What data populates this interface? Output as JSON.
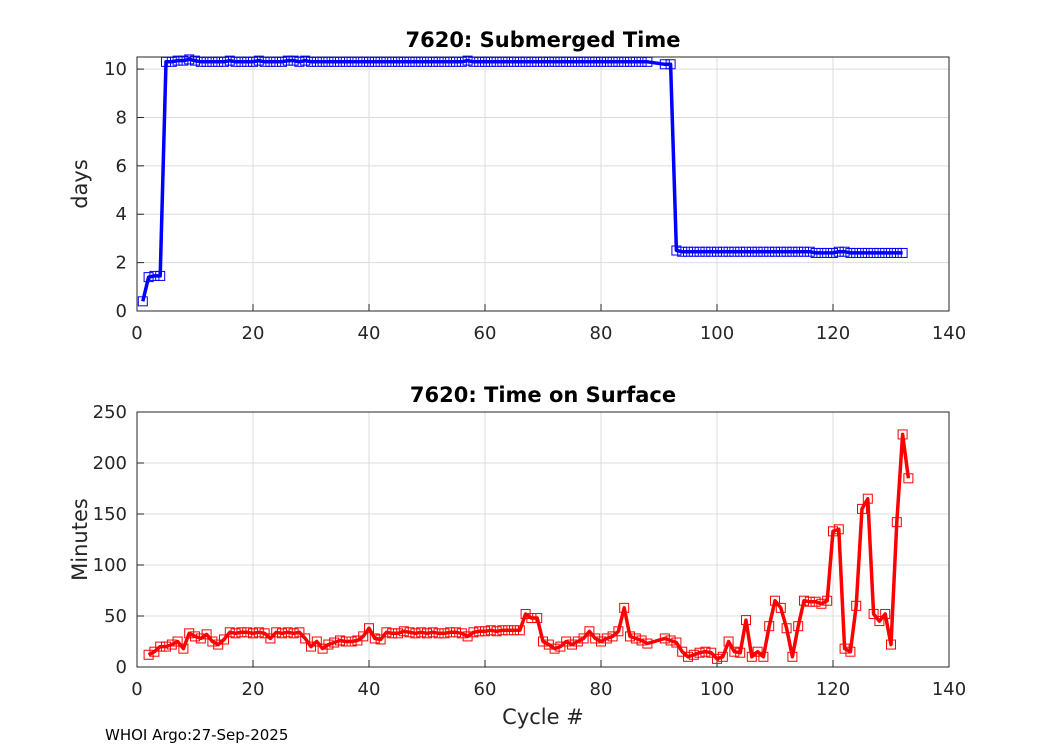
{
  "footer": "WHOI Argo:27-Sep-2025",
  "colors": {
    "series1": "#0000ff",
    "series2": "#ff0000",
    "grid": "#dcdcdc",
    "axis": "#262626"
  },
  "chart_data": [
    {
      "type": "line",
      "title": "7620: Submerged Time",
      "xlabel": "",
      "ylabel": "days",
      "xlim": [
        0,
        140
      ],
      "ylim": [
        0,
        10.5
      ],
      "xticks": [
        "0",
        "20",
        "40",
        "60",
        "80",
        "100",
        "120",
        "140"
      ],
      "yticks": [
        "0",
        "2",
        "4",
        "6",
        "8",
        "10"
      ],
      "grid": true,
      "marker": "square",
      "series": [
        {
          "name": "Submerged Time",
          "x": [
            1,
            2,
            3,
            4,
            5,
            6,
            7,
            8,
            9,
            10,
            11,
            12,
            13,
            14,
            15,
            16,
            17,
            18,
            19,
            20,
            21,
            22,
            23,
            24,
            25,
            26,
            27,
            28,
            29,
            30,
            31,
            32,
            33,
            34,
            35,
            36,
            37,
            38,
            39,
            40,
            41,
            42,
            43,
            44,
            45,
            46,
            47,
            48,
            49,
            50,
            51,
            52,
            53,
            54,
            55,
            56,
            57,
            58,
            59,
            60,
            61,
            62,
            63,
            64,
            65,
            66,
            67,
            68,
            69,
            70,
            71,
            72,
            73,
            74,
            75,
            76,
            77,
            78,
            79,
            80,
            81,
            82,
            83,
            84,
            85,
            86,
            87,
            88,
            91,
            92,
            93,
            94,
            95,
            96,
            97,
            98,
            99,
            100,
            101,
            102,
            103,
            104,
            105,
            106,
            107,
            108,
            109,
            110,
            111,
            112,
            113,
            114,
            115,
            116,
            117,
            118,
            119,
            120,
            121,
            122,
            123,
            124,
            125,
            126,
            127,
            128,
            129,
            130,
            131,
            132
          ],
          "values": [
            0.4,
            1.4,
            1.45,
            1.45,
            10.3,
            10.3,
            10.35,
            10.35,
            10.4,
            10.35,
            10.3,
            10.3,
            10.3,
            10.3,
            10.3,
            10.35,
            10.3,
            10.3,
            10.3,
            10.3,
            10.35,
            10.3,
            10.3,
            10.3,
            10.3,
            10.35,
            10.35,
            10.3,
            10.35,
            10.3,
            10.3,
            10.3,
            10.3,
            10.3,
            10.3,
            10.3,
            10.3,
            10.3,
            10.3,
            10.3,
            10.3,
            10.3,
            10.3,
            10.3,
            10.3,
            10.3,
            10.3,
            10.3,
            10.3,
            10.3,
            10.3,
            10.3,
            10.3,
            10.3,
            10.3,
            10.3,
            10.35,
            10.3,
            10.3,
            10.3,
            10.3,
            10.3,
            10.3,
            10.3,
            10.3,
            10.3,
            10.3,
            10.3,
            10.3,
            10.3,
            10.3,
            10.3,
            10.3,
            10.3,
            10.3,
            10.3,
            10.3,
            10.3,
            10.3,
            10.3,
            10.3,
            10.3,
            10.3,
            10.3,
            10.3,
            10.3,
            10.3,
            10.3,
            10.2,
            10.2,
            2.5,
            2.45,
            2.45,
            2.45,
            2.45,
            2.45,
            2.45,
            2.45,
            2.45,
            2.45,
            2.45,
            2.45,
            2.45,
            2.45,
            2.45,
            2.45,
            2.45,
            2.45,
            2.45,
            2.45,
            2.45,
            2.45,
            2.45,
            2.45,
            2.4,
            2.4,
            2.4,
            2.4,
            2.45,
            2.45,
            2.4,
            2.4,
            2.4,
            2.4,
            2.4,
            2.4,
            2.4,
            2.4,
            2.4,
            2.4
          ]
        }
      ]
    },
    {
      "type": "line",
      "title": "7620: Time on Surface",
      "xlabel": "Cycle #",
      "ylabel": "Minutes",
      "xlim": [
        0,
        140
      ],
      "ylim": [
        0,
        250
      ],
      "xticks": [
        "0",
        "20",
        "40",
        "60",
        "80",
        "100",
        "120",
        "140"
      ],
      "yticks": [
        "0",
        "50",
        "100",
        "150",
        "200",
        "250"
      ],
      "grid": true,
      "marker": "square",
      "series": [
        {
          "name": "Time on Surface",
          "x": [
            2,
            3,
            4,
            5,
            6,
            7,
            8,
            9,
            10,
            11,
            12,
            13,
            14,
            15,
            16,
            17,
            18,
            19,
            20,
            21,
            22,
            23,
            24,
            25,
            26,
            27,
            28,
            29,
            30,
            31,
            32,
            33,
            34,
            35,
            36,
            37,
            38,
            39,
            40,
            41,
            42,
            43,
            44,
            45,
            46,
            47,
            48,
            49,
            50,
            51,
            52,
            53,
            54,
            55,
            56,
            57,
            58,
            59,
            60,
            61,
            62,
            63,
            64,
            65,
            66,
            67,
            68,
            69,
            70,
            71,
            72,
            73,
            74,
            75,
            76,
            77,
            78,
            79,
            80,
            81,
            82,
            83,
            84,
            85,
            86,
            87,
            88,
            91,
            92,
            93,
            94,
            95,
            96,
            97,
            98,
            99,
            100,
            101,
            102,
            103,
            104,
            105,
            106,
            107,
            108,
            109,
            110,
            111,
            112,
            113,
            114,
            115,
            116,
            117,
            118,
            119,
            120,
            121,
            122,
            123,
            124,
            125,
            126,
            127,
            128,
            129,
            130,
            131,
            132,
            133
          ],
          "values": [
            12,
            15,
            20,
            20,
            22,
            25,
            18,
            33,
            30,
            28,
            32,
            25,
            22,
            27,
            34,
            33,
            34,
            34,
            33,
            34,
            33,
            28,
            34,
            33,
            34,
            33,
            34,
            28,
            20,
            25,
            18,
            22,
            24,
            26,
            25,
            25,
            26,
            30,
            38,
            28,
            27,
            34,
            33,
            33,
            35,
            34,
            33,
            34,
            33,
            34,
            33,
            33,
            34,
            34,
            33,
            30,
            34,
            35,
            35,
            36,
            35,
            36,
            36,
            36,
            36,
            52,
            48,
            48,
            25,
            22,
            18,
            20,
            25,
            22,
            25,
            28,
            35,
            28,
            25,
            28,
            30,
            35,
            58,
            30,
            28,
            26,
            23,
            28,
            26,
            24,
            15,
            10,
            12,
            14,
            15,
            14,
            8,
            10,
            25,
            15,
            14,
            46,
            10,
            15,
            10,
            40,
            65,
            58,
            38,
            10,
            40,
            65,
            64,
            64,
            62,
            65,
            133,
            135,
            18,
            15,
            60,
            155,
            165,
            52,
            45,
            52,
            22,
            142,
            228,
            185
          ]
        }
      ]
    }
  ]
}
